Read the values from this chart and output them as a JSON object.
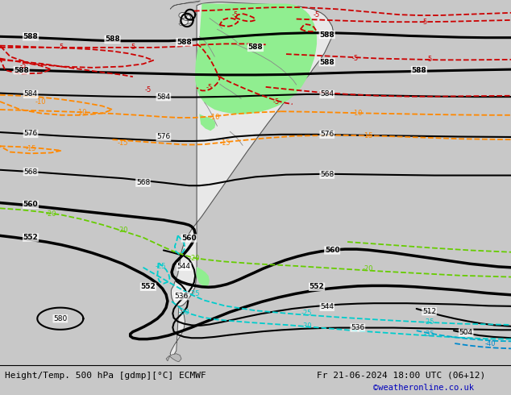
{
  "footer_left": "Height/Temp. 500 hPa [gdmp][°C] ECMWF",
  "footer_right": "Fr 21-06-2024 18:00 UTC (06+12)",
  "footer_credit": "©weatheronline.co.uk",
  "fig_width": 6.34,
  "fig_height": 4.9,
  "dpi": 100,
  "bg_color": "#c8c8c8",
  "ocean_color": "#d2d2d2",
  "land_color": "#e8e8e8",
  "green_color": "#90ee90",
  "footer_fontsize": 8.0,
  "credit_fontsize": 7.5,
  "credit_color": "#0000bb"
}
